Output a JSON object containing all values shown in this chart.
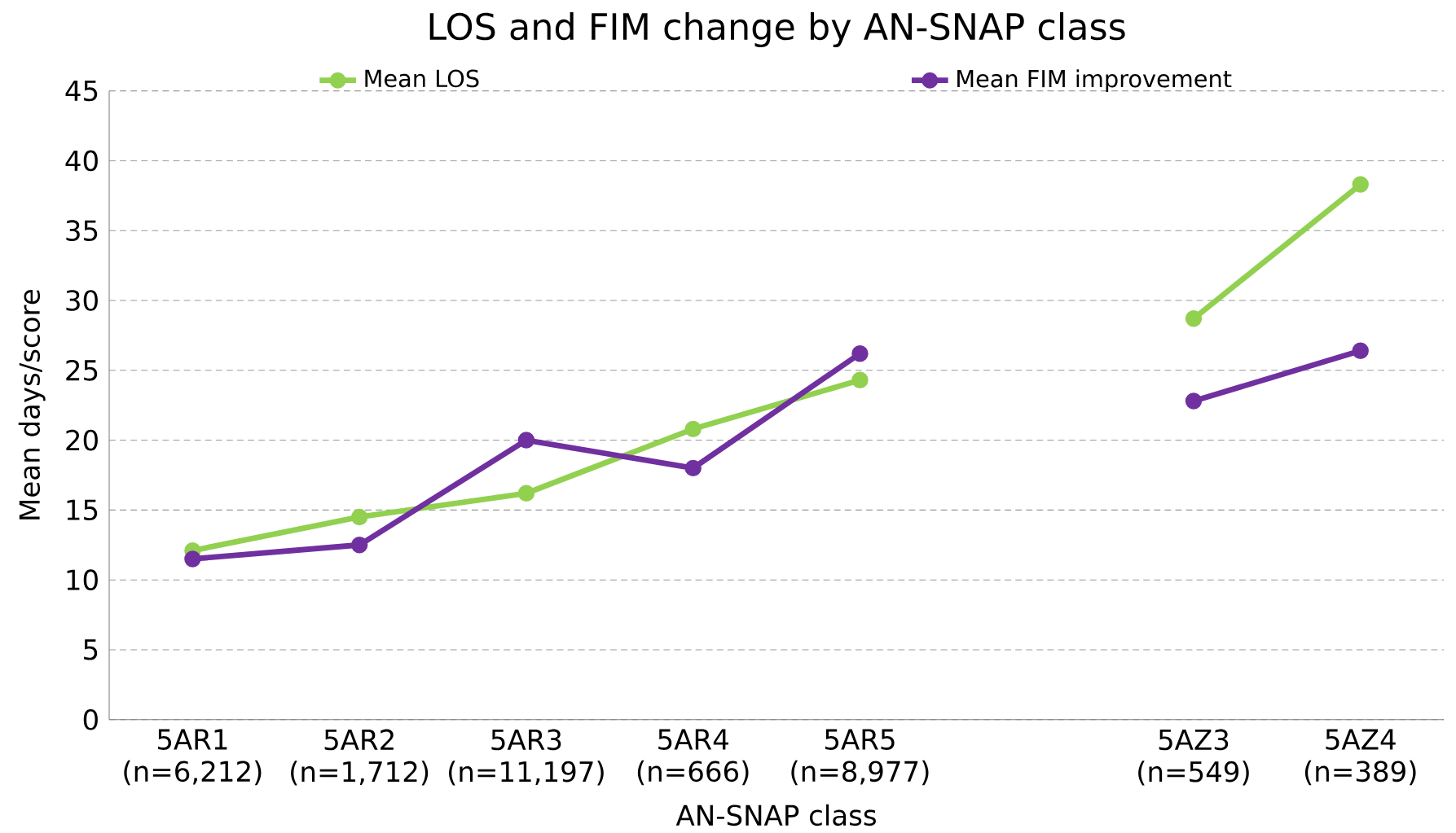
{
  "chart_data": {
    "type": "line",
    "title": "LOS and FIM change by AN-SNAP class",
    "xlabel": "AN-SNAP class",
    "ylabel": "Mean days/score",
    "categories": [
      "5AR1 (n=6,212)",
      "5AR2 (n=1,712)",
      "5AR3 (n=11,197)",
      "5AR4 (n=666)",
      "5AR5 (n=8,977)",
      null,
      "5AZ3 (n=549)",
      "5AZ4 (n=389)"
    ],
    "series": [
      {
        "name": "Mean LOS",
        "color": "#92d050",
        "values": [
          12.1,
          14.5,
          16.2,
          20.8,
          24.3,
          null,
          28.7,
          38.3
        ]
      },
      {
        "name": "Mean FIM improvement",
        "color": "#7030a0",
        "values": [
          11.5,
          12.5,
          20.0,
          18.0,
          26.2,
          null,
          22.8,
          26.4
        ]
      }
    ],
    "ylim": [
      0,
      45
    ],
    "yticks": [
      0,
      5,
      10,
      15,
      20,
      25,
      30,
      35,
      40,
      45
    ],
    "grid": "y",
    "legend": "top",
    "marker": "circle",
    "line_style": "solid"
  }
}
